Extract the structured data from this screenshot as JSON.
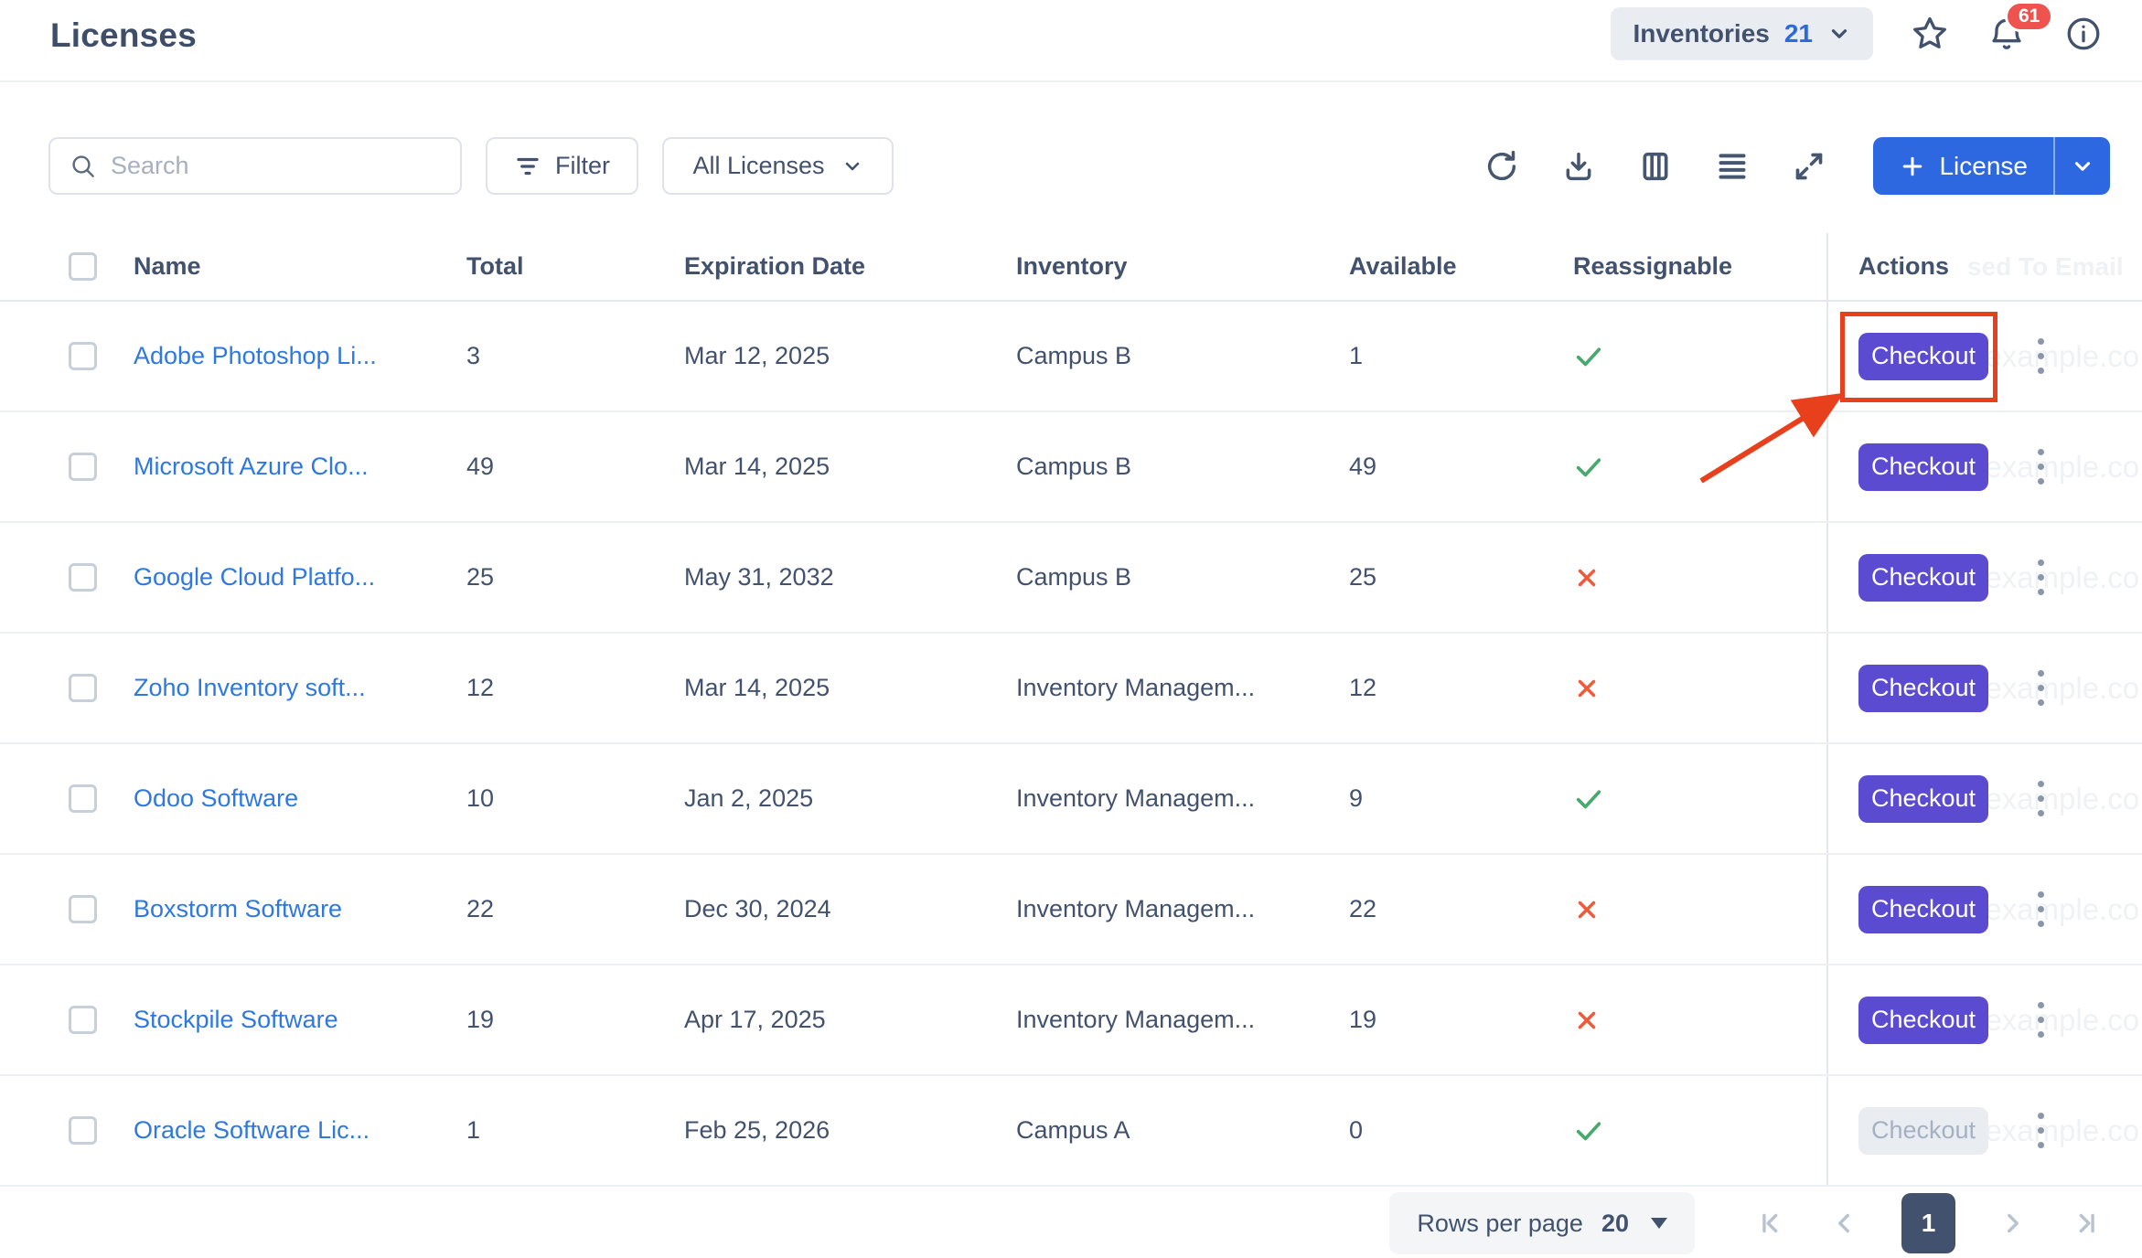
{
  "page": {
    "title": "Licenses"
  },
  "topbar": {
    "inventories_label": "Inventories",
    "inventories_count": "21",
    "notification_count": "61"
  },
  "toolbar": {
    "search_placeholder": "Search",
    "filter_label": "Filter",
    "license_filter_label": "All Licenses",
    "add_license_label": "License"
  },
  "table": {
    "headers": [
      "Name",
      "Total",
      "Expiration Date",
      "Inventory",
      "Available",
      "Reassignable",
      "Actions"
    ],
    "ghost_header_fragment": "sed To Email",
    "ghost_email_fragment": "ke@example.co",
    "checkout_label": "Checkout",
    "rows": [
      {
        "name": "Adobe Photoshop Li...",
        "total": "3",
        "expiration": "Mar 12, 2025",
        "inventory": "Campus B",
        "available": "1",
        "reassignable": true,
        "checkout_enabled": true
      },
      {
        "name": "Microsoft Azure Clo...",
        "total": "49",
        "expiration": "Mar 14, 2025",
        "inventory": "Campus B",
        "available": "49",
        "reassignable": true,
        "checkout_enabled": true
      },
      {
        "name": "Google Cloud Platfo...",
        "total": "25",
        "expiration": "May 31, 2032",
        "inventory": "Campus B",
        "available": "25",
        "reassignable": false,
        "checkout_enabled": true
      },
      {
        "name": "Zoho Inventory soft...",
        "total": "12",
        "expiration": "Mar 14, 2025",
        "inventory": "Inventory Managem...",
        "available": "12",
        "reassignable": false,
        "checkout_enabled": true
      },
      {
        "name": "Odoo Software",
        "total": "10",
        "expiration": "Jan 2, 2025",
        "inventory": "Inventory Managem...",
        "available": "9",
        "reassignable": true,
        "checkout_enabled": true
      },
      {
        "name": "Boxstorm Software",
        "total": "22",
        "expiration": "Dec 30, 2024",
        "inventory": "Inventory Managem...",
        "available": "22",
        "reassignable": false,
        "checkout_enabled": true
      },
      {
        "name": "Stockpile Software",
        "total": "19",
        "expiration": "Apr 17, 2025",
        "inventory": "Inventory Managem...",
        "available": "19",
        "reassignable": false,
        "checkout_enabled": true
      },
      {
        "name": "Oracle Software Lic...",
        "total": "1",
        "expiration": "Feb 25, 2026",
        "inventory": "Campus A",
        "available": "0",
        "reassignable": true,
        "checkout_enabled": false
      }
    ]
  },
  "footer": {
    "rows_per_page_label": "Rows per page",
    "rows_per_page_value": "20",
    "current_page": "1"
  },
  "icons": {
    "search-icon": "magnifier",
    "filter-icon": "funnel-lines",
    "chevron-down-icon": "v",
    "refresh-icon": "circular-arrow",
    "download-icon": "arrow-into-tray",
    "columns-icon": "vertical-bars",
    "row-density-icon": "four-lines",
    "expand-icon": "diagonal-arrows",
    "plus-icon": "+",
    "star-icon": "star-outline",
    "bell-icon": "bell-outline",
    "info-icon": "circle-i",
    "kebab-menu-icon": "vertical-dots",
    "check-icon": "checkmark",
    "x-icon": "cross",
    "caret-down-icon": "filled-triangle",
    "pager-first-icon": "bar-chevron-left",
    "pager-prev-icon": "chevron-left",
    "pager-next-icon": "chevron-right",
    "pager-last-icon": "chevron-bar-right"
  },
  "colors": {
    "navy": "#42526e",
    "link": "#2f78e0",
    "accent": "#2d68e0",
    "purple": "#5b4bd1",
    "green": "#47a96d",
    "redx": "#ee5b3a",
    "annotation": "#e8401c",
    "badge": "#ef5350"
  }
}
